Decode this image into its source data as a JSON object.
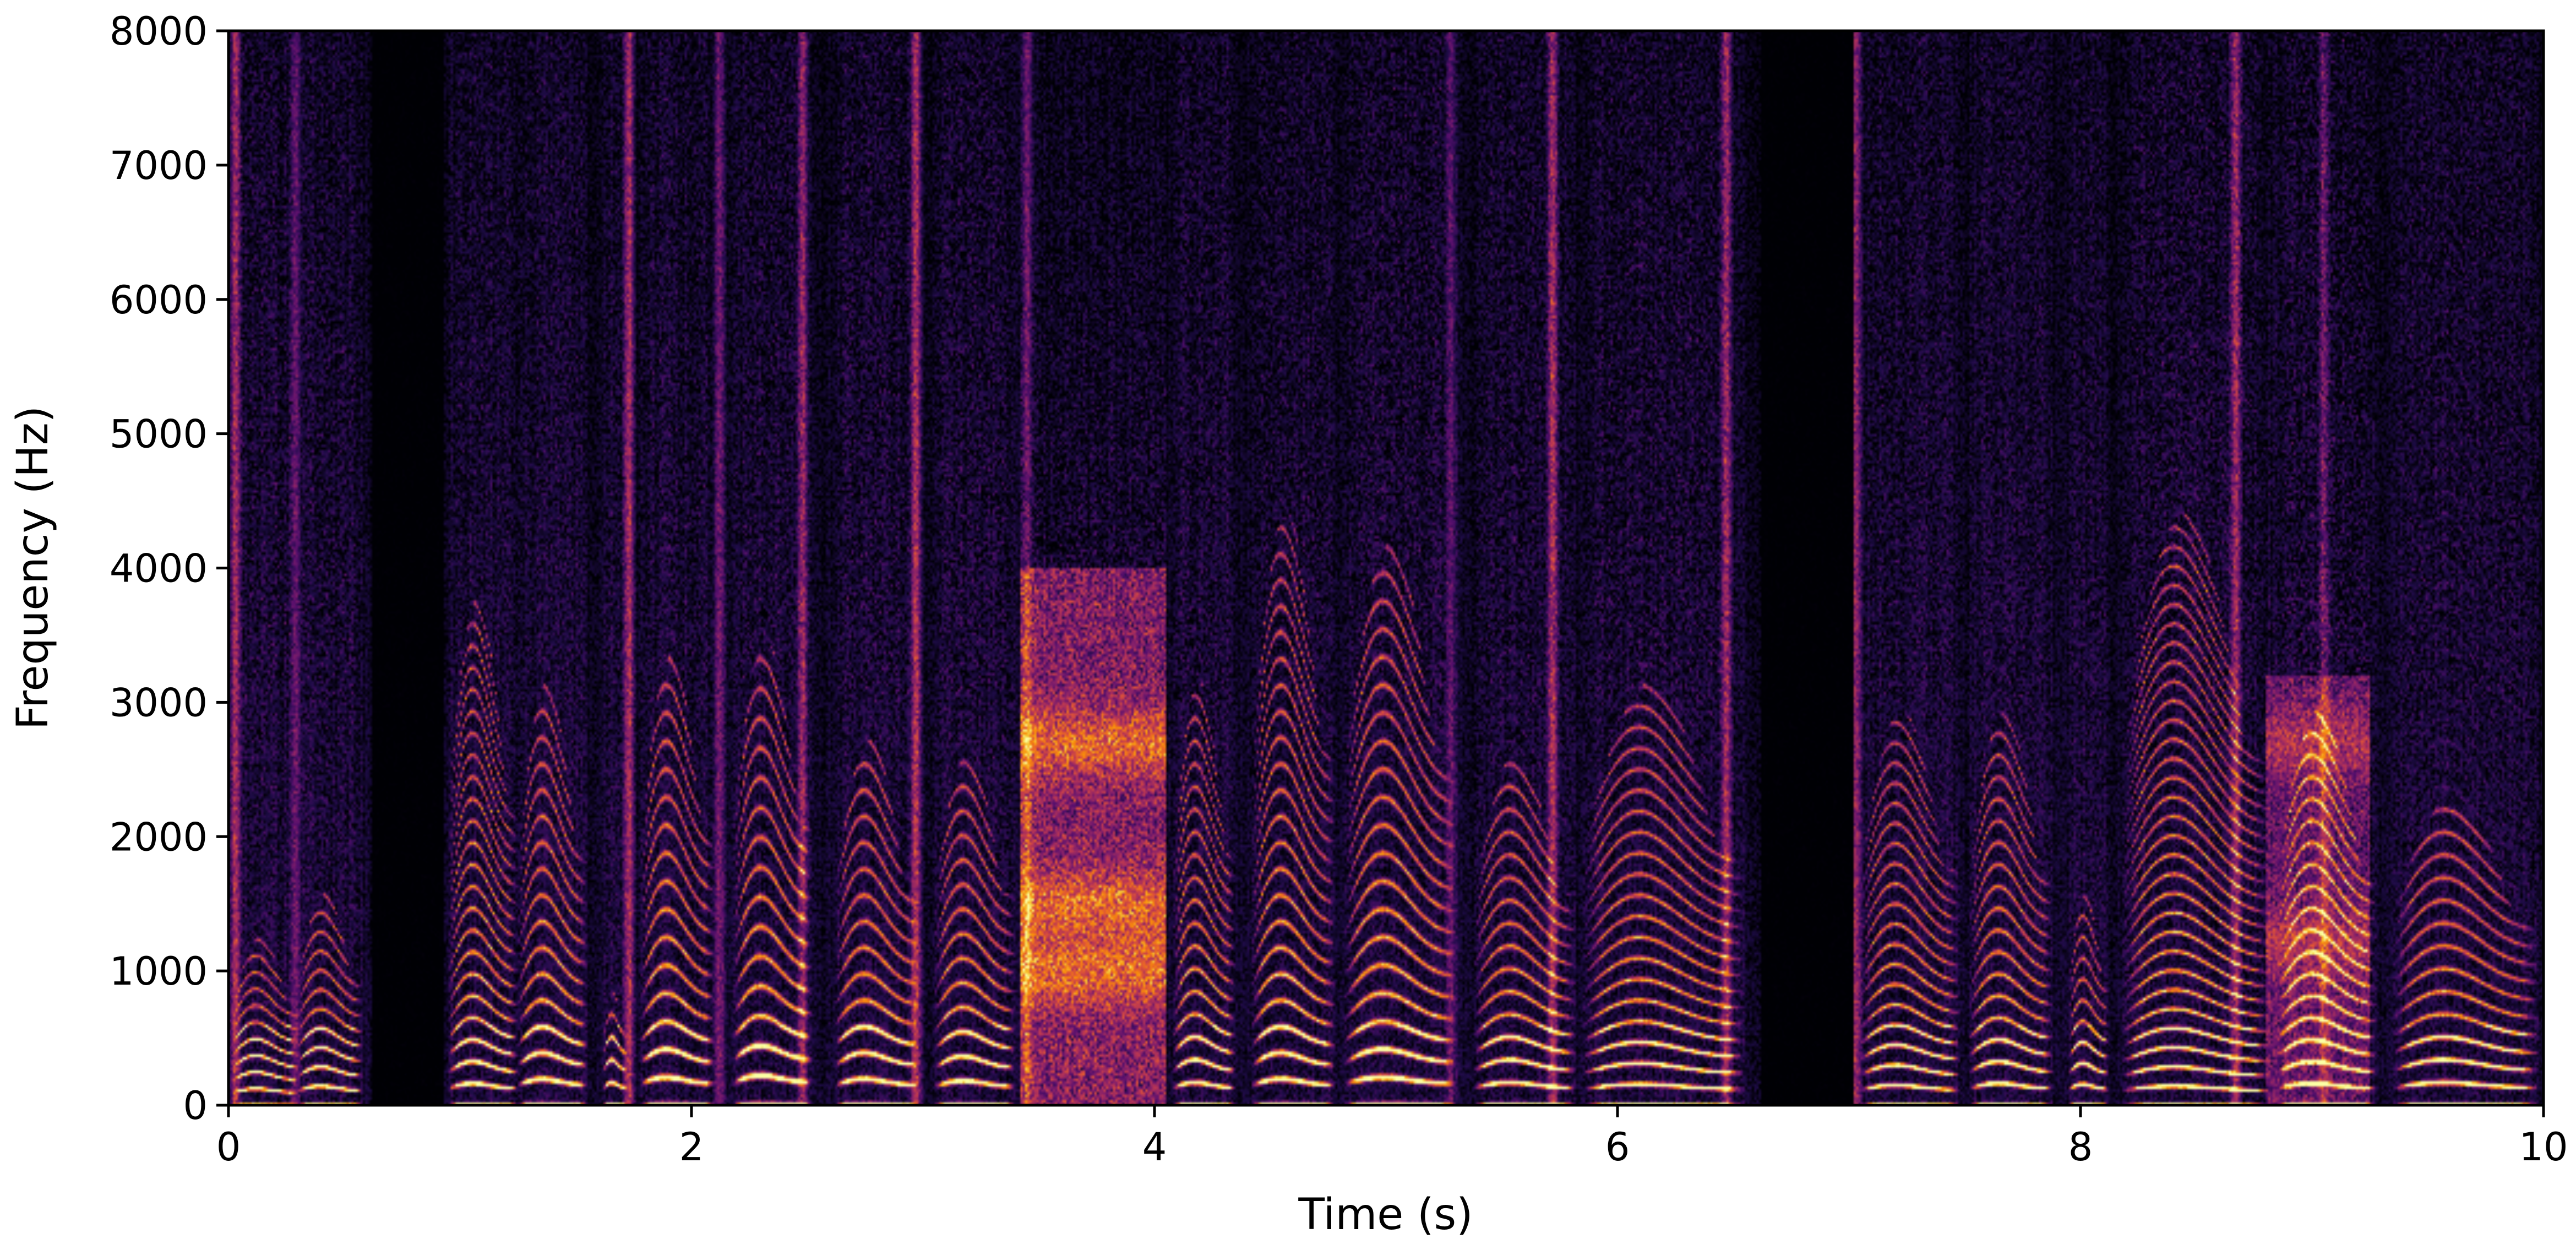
{
  "chart_data": {
    "type": "heatmap",
    "title": "",
    "xlabel": "Time (s)",
    "ylabel": "Frequency (Hz)",
    "xlim": [
      0,
      10
    ],
    "ylim": [
      0,
      8000
    ],
    "x_ticks": [
      0,
      2,
      4,
      6,
      8,
      10
    ],
    "x_tick_labels": [
      "0",
      "2",
      "4",
      "6",
      "8",
      "10"
    ],
    "y_ticks": [
      0,
      1000,
      2000,
      3000,
      4000,
      5000,
      6000,
      7000,
      8000
    ],
    "y_tick_labels": [
      "0",
      "1000",
      "2000",
      "3000",
      "4000",
      "5000",
      "6000",
      "7000",
      "8000"
    ],
    "colormap": "inferno",
    "colormap_stops": [
      "#000004",
      "#1f0c48",
      "#550f6d",
      "#88226a",
      "#ba3655",
      "#e35933",
      "#f98e09",
      "#f6d746",
      "#fcffa4"
    ],
    "grid": false,
    "legend": "none",
    "silent_intervals_s": [
      [
        0.62,
        0.93
      ],
      [
        6.62,
        7.02
      ]
    ],
    "voiced_segments": [
      {
        "t_start": 0.02,
        "t_end": 0.3,
        "f0_hz": 95,
        "harmonic_max_hz": 1200,
        "fricative_energy": 0.35
      },
      {
        "t_start": 0.3,
        "t_end": 0.58,
        "f0_hz": 110,
        "harmonic_max_hz": 1500,
        "fricative_energy": 0.3
      },
      {
        "t_start": 0.95,
        "t_end": 1.25,
        "f0_hz": 125,
        "harmonic_max_hz": 3600,
        "fricative_energy": 0.2
      },
      {
        "t_start": 1.25,
        "t_end": 1.55,
        "f0_hz": 150,
        "harmonic_max_hz": 3000,
        "fricative_energy": 0.2
      },
      {
        "t_start": 1.62,
        "t_end": 1.72,
        "f0_hz": 130,
        "harmonic_max_hz": 800,
        "fricative_energy": 0.2
      },
      {
        "t_start": 1.78,
        "t_end": 2.1,
        "f0_hz": 160,
        "harmonic_max_hz": 3200,
        "fricative_energy": 0.25
      },
      {
        "t_start": 2.18,
        "t_end": 2.52,
        "f0_hz": 170,
        "harmonic_max_hz": 3300,
        "fricative_energy": 0.3
      },
      {
        "t_start": 2.62,
        "t_end": 2.98,
        "f0_hz": 150,
        "harmonic_max_hz": 2600,
        "fricative_energy": 0.35
      },
      {
        "t_start": 3.05,
        "t_end": 3.4,
        "f0_hz": 140,
        "harmonic_max_hz": 2500,
        "fricative_energy": 0.35
      },
      {
        "t_start": 4.08,
        "t_end": 4.35,
        "f0_hz": 130,
        "harmonic_max_hz": 3000,
        "fricative_energy": 0.3
      },
      {
        "t_start": 4.42,
        "t_end": 4.78,
        "f0_hz": 150,
        "harmonic_max_hz": 4200,
        "fricative_energy": 0.3
      },
      {
        "t_start": 4.82,
        "t_end": 5.3,
        "f0_hz": 160,
        "harmonic_max_hz": 4000,
        "fricative_energy": 0.35
      },
      {
        "t_start": 5.38,
        "t_end": 5.82,
        "f0_hz": 130,
        "harmonic_max_hz": 2500,
        "fricative_energy": 0.3
      },
      {
        "t_start": 5.85,
        "t_end": 6.55,
        "f0_hz": 120,
        "harmonic_max_hz": 3000,
        "fricative_energy": 0.35
      },
      {
        "t_start": 7.05,
        "t_end": 7.48,
        "f0_hz": 115,
        "harmonic_max_hz": 2800,
        "fricative_energy": 0.25
      },
      {
        "t_start": 7.52,
        "t_end": 7.88,
        "f0_hz": 125,
        "harmonic_max_hz": 2800,
        "fricative_energy": 0.25
      },
      {
        "t_start": 7.95,
        "t_end": 8.12,
        "f0_hz": 120,
        "harmonic_max_hz": 1500,
        "fricative_energy": 0.2
      },
      {
        "t_start": 8.18,
        "t_end": 8.82,
        "f0_hz": 110,
        "harmonic_max_hz": 4200,
        "fricative_energy": 0.4
      },
      {
        "t_start": 8.85,
        "t_end": 9.28,
        "f0_hz": 125,
        "harmonic_max_hz": 2800,
        "fricative_energy": 0.45
      },
      {
        "t_start": 9.35,
        "t_end": 9.98,
        "f0_hz": 130,
        "harmonic_max_hz": 2200,
        "fricative_energy": 0.3
      }
    ],
    "broadband_regions": [
      {
        "t_start": 3.42,
        "t_end": 4.05,
        "f_max_hz": 4000,
        "energy": 0.8,
        "formant_bands_hz": [
          1000,
          1500,
          2700
        ]
      },
      {
        "t_start": 8.8,
        "t_end": 9.25,
        "f_max_hz": 3200,
        "energy": 0.55,
        "formant_bands_hz": [
          1200,
          2700
        ]
      }
    ],
    "vertical_bursts": [
      {
        "t": 0.03,
        "strength": 0.9
      },
      {
        "t": 0.29,
        "strength": 0.6
      },
      {
        "t": 1.73,
        "strength": 0.95
      },
      {
        "t": 2.12,
        "strength": 0.6
      },
      {
        "t": 2.48,
        "strength": 0.85
      },
      {
        "t": 2.97,
        "strength": 1.0
      },
      {
        "t": 3.45,
        "strength": 0.7
      },
      {
        "t": 5.28,
        "strength": 0.5
      },
      {
        "t": 5.72,
        "strength": 0.95
      },
      {
        "t": 6.47,
        "strength": 0.85
      },
      {
        "t": 7.03,
        "strength": 0.85
      },
      {
        "t": 8.67,
        "strength": 0.9
      },
      {
        "t": 9.05,
        "strength": 0.6
      }
    ]
  }
}
